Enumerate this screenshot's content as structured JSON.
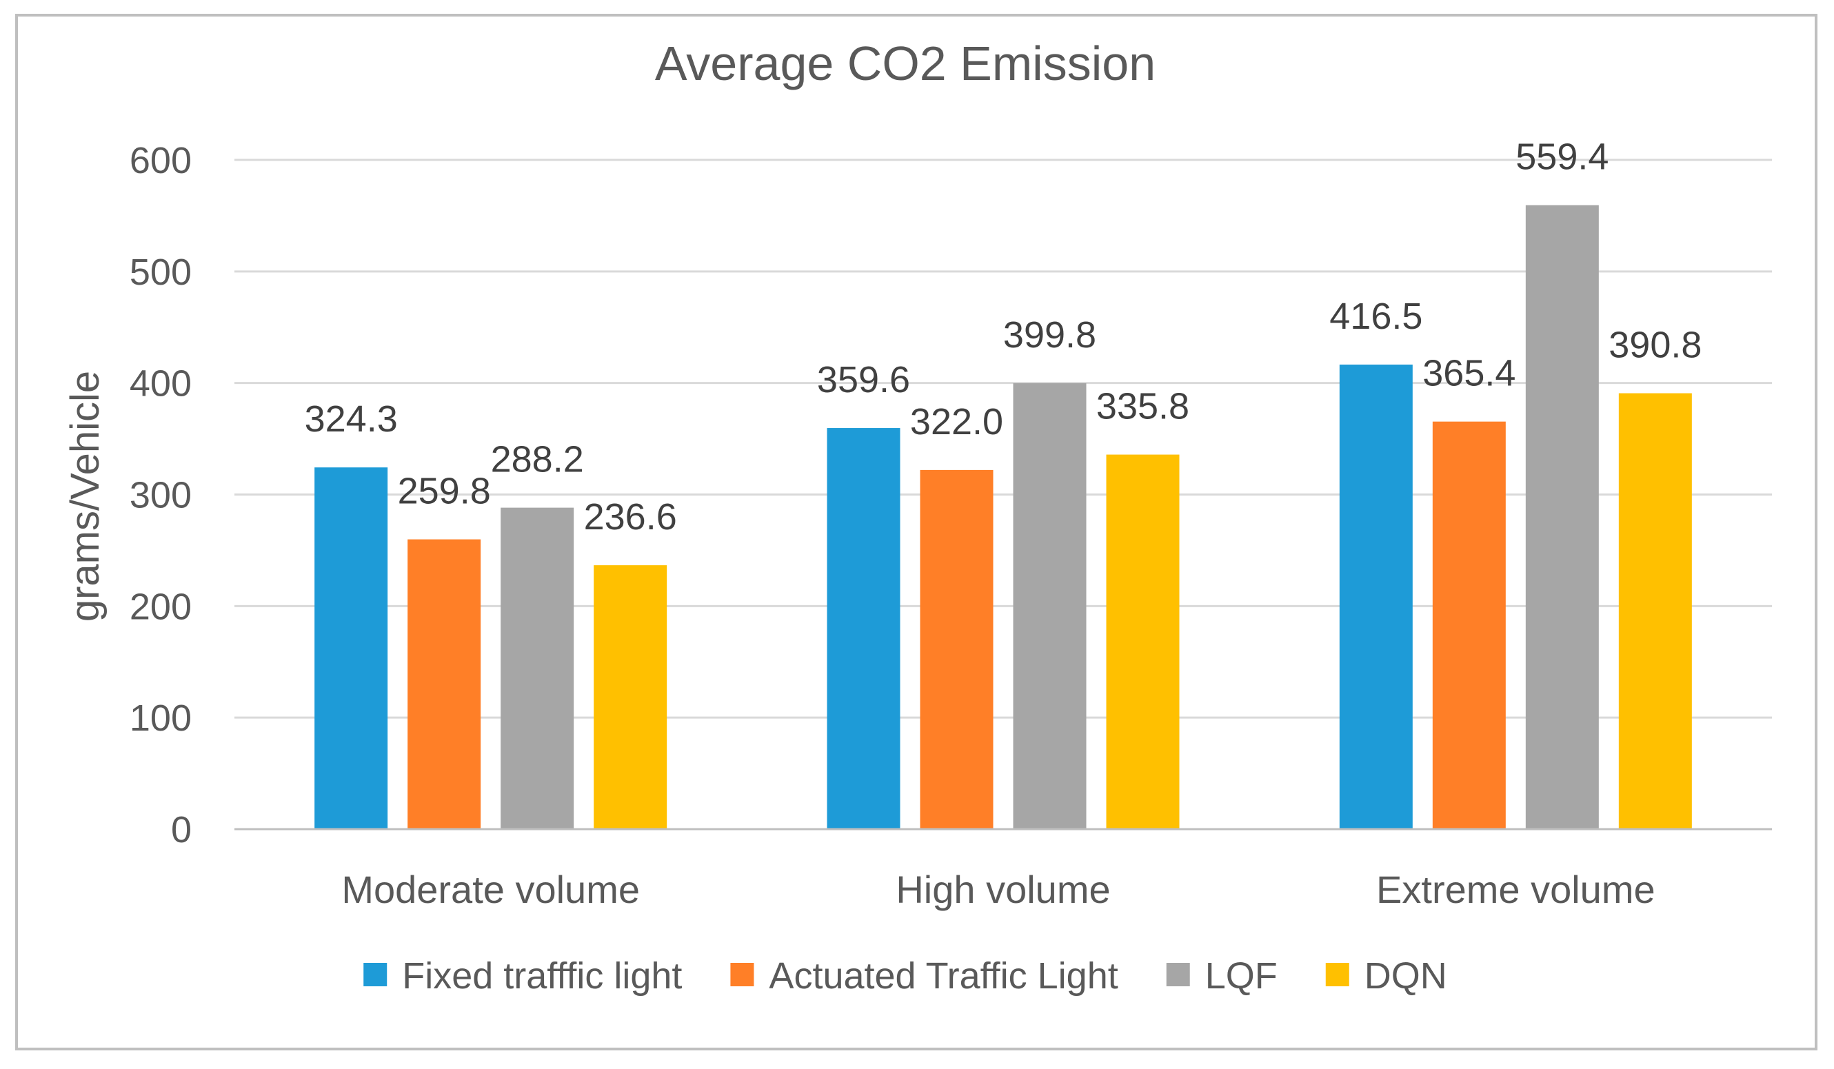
{
  "chart_data": {
    "type": "bar",
    "title": "Average CO2 Emission",
    "xlabel": "",
    "ylabel": "grams/Vehicle",
    "ylim": [
      0,
      600
    ],
    "yticks": [
      0,
      100,
      200,
      300,
      400,
      500,
      600
    ],
    "grid": true,
    "legend_position": "bottom",
    "categories": [
      "Moderate volume",
      "High volume",
      "Extreme volume"
    ],
    "series": [
      {
        "name": "Fixed trafffic light",
        "color": "#1E9BD7",
        "values": [
          324.3,
          359.6,
          416.5
        ],
        "labels": [
          "324.3",
          "359.6",
          "416.5"
        ]
      },
      {
        "name": "Actuated Traffic Light",
        "color": "#FF7F27",
        "values": [
          259.8,
          322.0,
          365.4
        ],
        "labels": [
          "259.8",
          "322.0",
          "365.4"
        ]
      },
      {
        "name": "LQF",
        "color": "#A6A6A6",
        "values": [
          288.2,
          399.8,
          559.4
        ],
        "labels": [
          "288.2",
          "399.8",
          "559.4"
        ]
      },
      {
        "name": "DQN",
        "color": "#FFC000",
        "values": [
          236.6,
          335.8,
          390.8
        ],
        "labels": [
          "236.6",
          "335.8",
          "390.8"
        ]
      }
    ]
  }
}
